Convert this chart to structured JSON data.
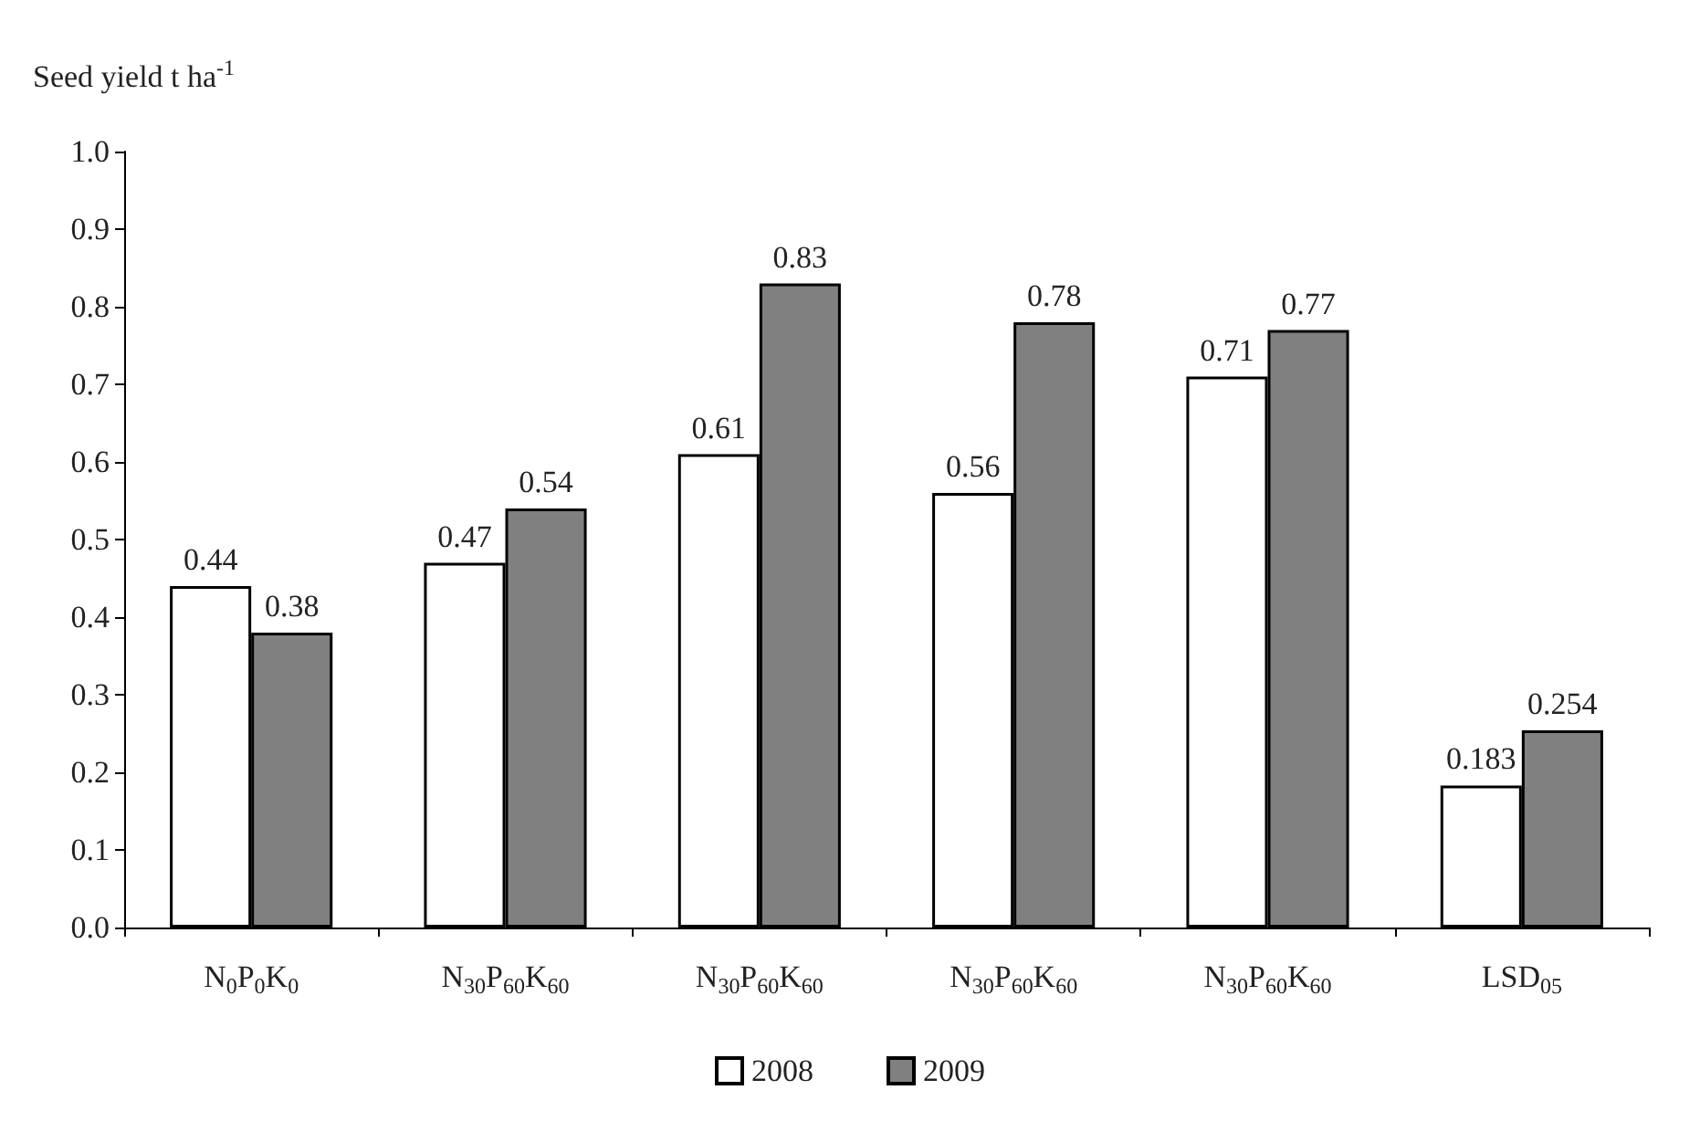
{
  "chart_data": {
    "type": "bar",
    "ylabel": "Seed yield t ha$^{-1}$",
    "categories": [
      "N$_{0}$P$_{0}$K$_{0}$",
      "N$_{30}$P$_{60}$K$_{60}$",
      "N$_{30}$P$_{60}$K$_{60}$",
      "N$_{30}$P$_{60}$K$_{60}$",
      "N$_{30}$P$_{60}$K$_{60}$",
      "LSD$_{05}$"
    ],
    "series": [
      {
        "name": "2008",
        "color": "#ffffff",
        "values": [
          0.44,
          0.47,
          0.61,
          0.56,
          0.71,
          0.183
        ]
      },
      {
        "name": "2009",
        "color": "#808080",
        "values": [
          0.38,
          0.54,
          0.83,
          0.78,
          0.77,
          0.254
        ]
      }
    ],
    "ylim": [
      0,
      1
    ],
    "yticks": [
      {
        "value": 0,
        "label": "0.0"
      },
      {
        "value": 0.1,
        "label": "0.1"
      },
      {
        "value": 0.2,
        "label": "0.2"
      },
      {
        "value": 0.3,
        "label": "0.3"
      },
      {
        "value": 0.4,
        "label": "0.4"
      },
      {
        "value": 0.5,
        "label": "0.5"
      },
      {
        "value": 0.6,
        "label": "0.6"
      },
      {
        "value": 0.7,
        "label": "0.7"
      },
      {
        "value": 0.8,
        "label": "0.8"
      },
      {
        "value": 0.9,
        "label": "0.9"
      },
      {
        "value": 1,
        "label": "1.0"
      }
    ],
    "grid": false,
    "legend": "bottom",
    "data_labels": true
  }
}
